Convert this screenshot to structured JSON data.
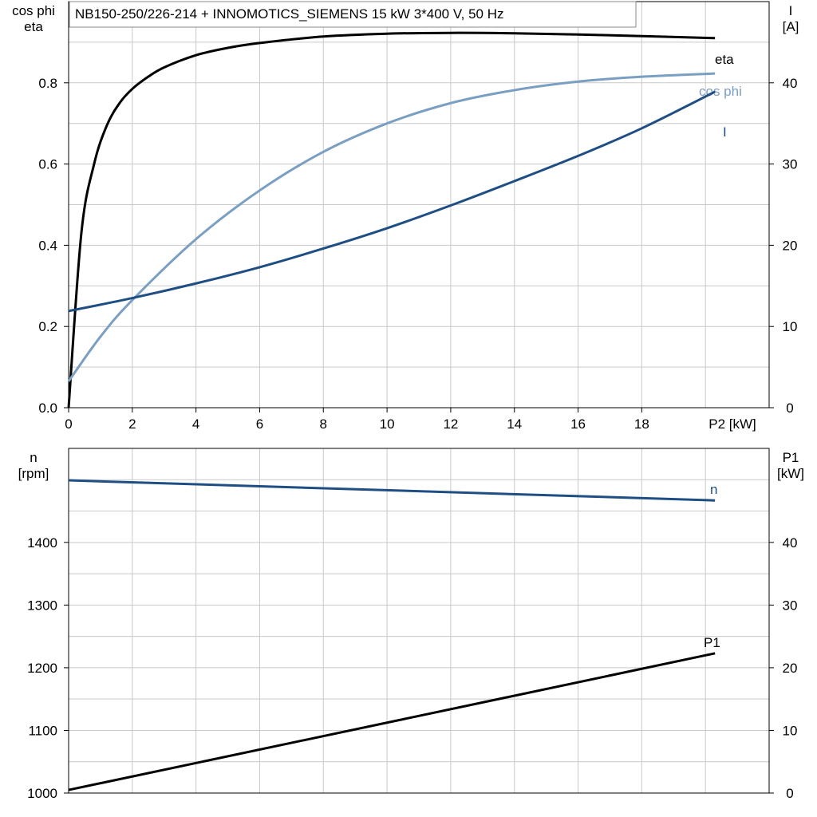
{
  "title": "NB150-250/226-214 + INNOMOTICS_SIEMENS   15 kW   3*400 V, 50 Hz",
  "chart_data": [
    {
      "type": "line",
      "xlabel": "P2 [kW]",
      "xlim": [
        0,
        22
      ],
      "xticks": [
        0,
        2,
        4,
        6,
        8,
        10,
        12,
        14,
        16,
        18
      ],
      "left_axis": {
        "label_lines": [
          "cos phi",
          "eta"
        ],
        "lim": [
          0,
          1.0
        ],
        "ticks": [
          0.0,
          0.2,
          0.4,
          0.6,
          0.8
        ],
        "tick_labels": [
          "0.0",
          "0.2",
          "0.4",
          "0.6",
          "0.8"
        ]
      },
      "right_axis": {
        "label_lines": [
          "I",
          "[A]"
        ],
        "lim": [
          0,
          50
        ],
        "ticks": [
          0,
          10,
          20,
          30,
          40
        ],
        "tick_labels": [
          "0",
          "10",
          "20",
          "30",
          "40"
        ]
      },
      "grid": true,
      "series": [
        {
          "name": "eta",
          "axis": "left",
          "color": "#000000",
          "x": [
            0,
            0.4,
            0.8,
            1.2,
            1.6,
            2.0,
            2.5,
            3,
            4,
            5,
            6,
            8,
            10,
            12,
            14,
            16,
            18,
            20.3
          ],
          "y": [
            0.0,
            0.43,
            0.6,
            0.695,
            0.75,
            0.785,
            0.815,
            0.838,
            0.868,
            0.886,
            0.898,
            0.914,
            0.921,
            0.923,
            0.922,
            0.919,
            0.915,
            0.91
          ]
        },
        {
          "name": "cos phi",
          "axis": "left",
          "color": "#7a9fc2",
          "x": [
            0,
            1,
            2,
            4,
            6,
            8,
            10,
            12,
            14,
            16,
            18,
            20.3
          ],
          "y": [
            0.065,
            0.175,
            0.265,
            0.415,
            0.535,
            0.63,
            0.7,
            0.75,
            0.782,
            0.803,
            0.815,
            0.823
          ]
        },
        {
          "name": "I",
          "axis": "right",
          "color": "#1f4e85",
          "x": [
            0,
            2,
            4,
            6,
            8,
            10,
            12,
            14,
            16,
            18,
            20.3
          ],
          "y": [
            11.9,
            13.5,
            15.3,
            17.3,
            19.6,
            22.1,
            24.9,
            27.9,
            31.0,
            34.4,
            38.9
          ]
        }
      ]
    },
    {
      "type": "line",
      "xlim": [
        0,
        22
      ],
      "left_axis": {
        "label_lines": [
          "n",
          "[rpm]"
        ],
        "lim": [
          1000,
          1550
        ],
        "ticks": [
          1000,
          1100,
          1200,
          1300,
          1400
        ],
        "tick_labels": [
          "1000",
          "1100",
          "1200",
          "1300",
          "1400"
        ]
      },
      "right_axis": {
        "label_lines": [
          "P1",
          "[kW]"
        ],
        "lim": [
          0,
          55
        ],
        "ticks": [
          0,
          10,
          20,
          30,
          40
        ],
        "tick_labels": [
          "0",
          "10",
          "20",
          "30",
          "40"
        ]
      },
      "grid": true,
      "series": [
        {
          "name": "n",
          "axis": "left",
          "color": "#1f4e85",
          "x": [
            0,
            20.3
          ],
          "y": [
            1499,
            1467
          ]
        },
        {
          "name": "P1",
          "axis": "right",
          "color": "#000000",
          "x": [
            0,
            20.3
          ],
          "y": [
            0.5,
            22.3
          ]
        }
      ]
    }
  ]
}
